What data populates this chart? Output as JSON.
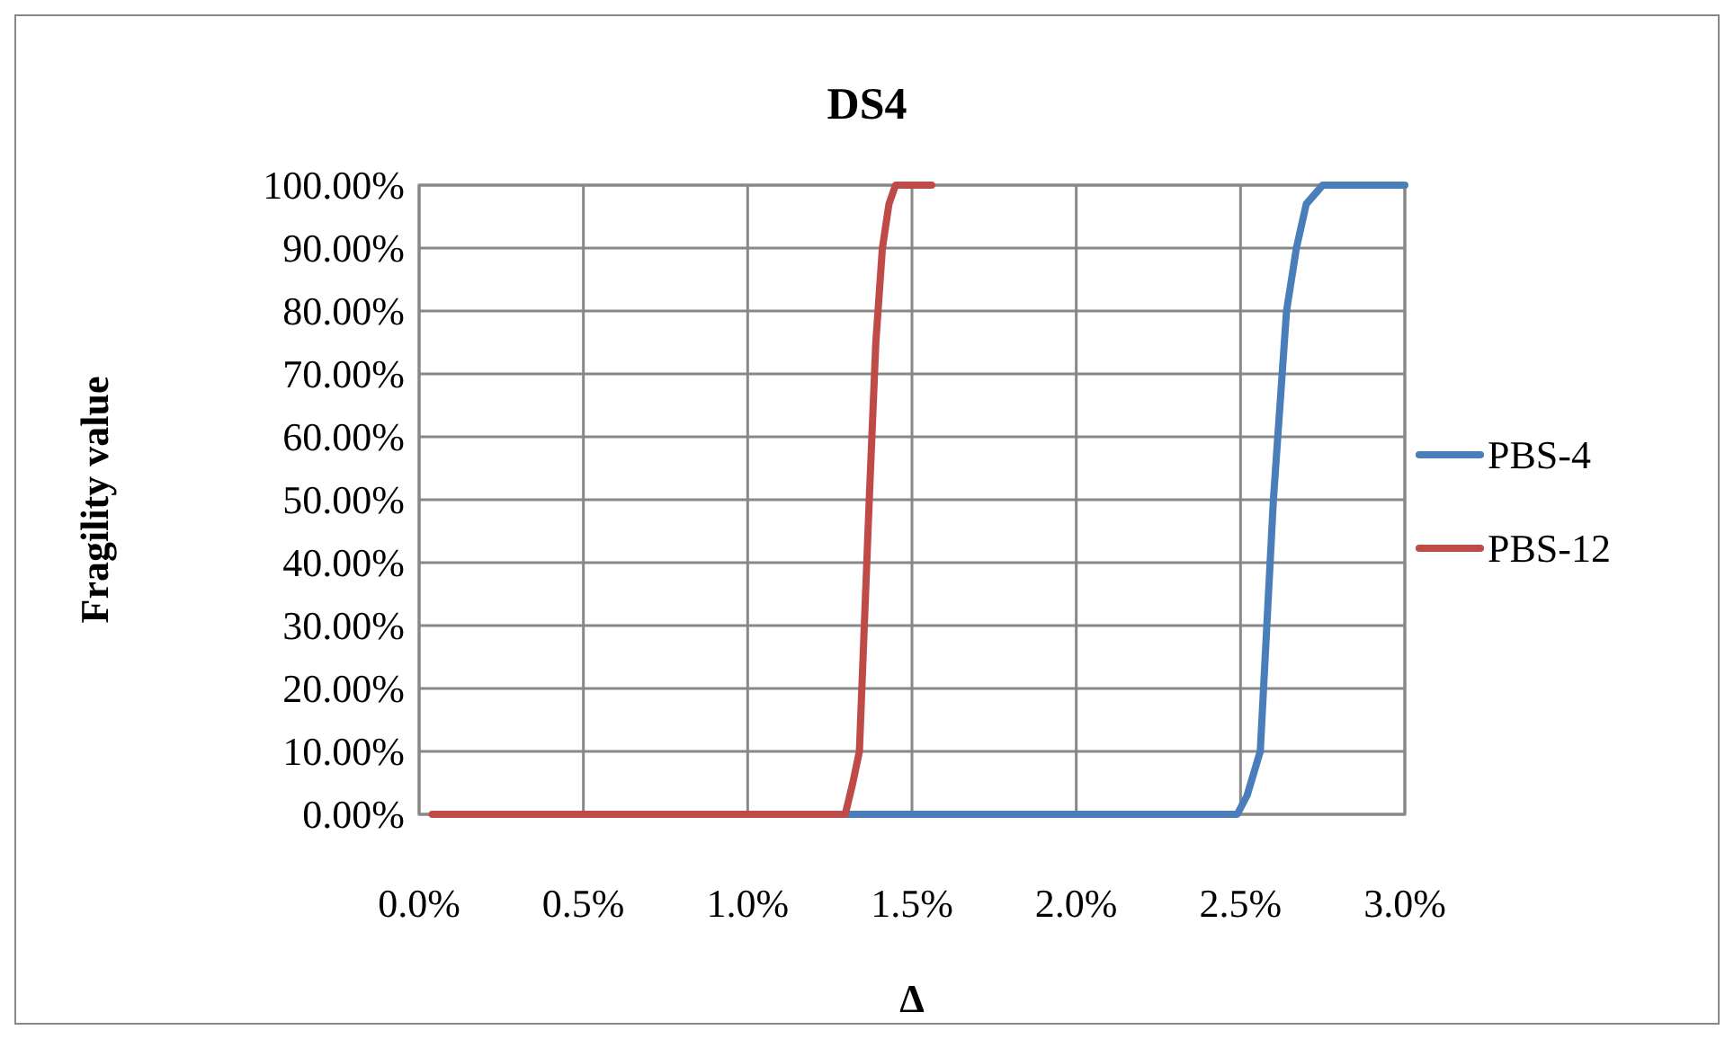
{
  "chart_data": {
    "type": "line",
    "title": "DS4",
    "xlabel": "Δ",
    "ylabel": "Fragility value",
    "xlim": [
      0,
      3
    ],
    "ylim": [
      0,
      100
    ],
    "xticks": [
      {
        "value": 0,
        "label": "0.0%"
      },
      {
        "value": 0.5,
        "label": "0.5%"
      },
      {
        "value": 1,
        "label": "1.0%"
      },
      {
        "value": 1.5,
        "label": "1.5%"
      },
      {
        "value": 2,
        "label": "2.0%"
      },
      {
        "value": 2.5,
        "label": "2.5%"
      },
      {
        "value": 3,
        "label": "3.0%"
      }
    ],
    "yticks": [
      {
        "value": 0,
        "label": "0.00%"
      },
      {
        "value": 10,
        "label": "10.00%"
      },
      {
        "value": 20,
        "label": "20.00%"
      },
      {
        "value": 30,
        "label": "30.00%"
      },
      {
        "value": 40,
        "label": "40.00%"
      },
      {
        "value": 50,
        "label": "50.00%"
      },
      {
        "value": 60,
        "label": "60.00%"
      },
      {
        "value": 70,
        "label": "70.00%"
      },
      {
        "value": 80,
        "label": "80.00%"
      },
      {
        "value": 90,
        "label": "90.00%"
      },
      {
        "value": 100,
        "label": "100.00%"
      }
    ],
    "grid": true,
    "legend": "right",
    "marker": "none",
    "line_style": "solid",
    "series": [
      {
        "name": "PBS-4",
        "color": "#4a7ebb",
        "x": [
          1.3,
          2.0,
          2.49,
          2.52,
          2.56,
          2.6,
          2.64,
          2.67,
          2.7,
          2.75,
          3.0
        ],
        "values": [
          0,
          0,
          0,
          3,
          10,
          50,
          80,
          90,
          97,
          100,
          100
        ]
      },
      {
        "name": "PBS-12",
        "color": "#be4b48",
        "x": [
          0.04,
          0.5,
          1.0,
          1.297,
          1.32,
          1.34,
          1.37,
          1.39,
          1.41,
          1.43,
          1.45,
          1.56
        ],
        "values": [
          0,
          0,
          0,
          0,
          5,
          10,
          50,
          75,
          90,
          97,
          100,
          100
        ]
      }
    ]
  }
}
